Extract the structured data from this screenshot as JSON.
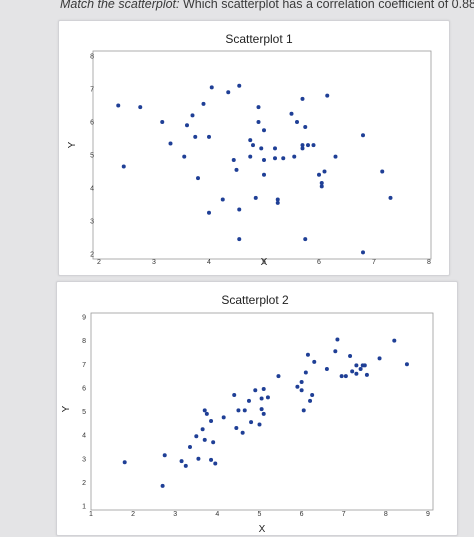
{
  "question": {
    "prefix": "Match the scatterplot:",
    "text": "Which scatterplot has a correlation coefficient of 0.88?"
  },
  "chart_data": [
    {
      "type": "scatter",
      "title": "Scatterplot 1",
      "xlabel": "X",
      "ylabel": "Y",
      "xlim": [
        2,
        8
      ],
      "ylim": [
        2,
        8
      ],
      "xticks": [
        2,
        3,
        4,
        5,
        6,
        7,
        8
      ],
      "yticks": [
        2,
        3,
        4,
        5,
        6,
        7,
        8
      ],
      "grid": false,
      "color": "#1f3f96",
      "points": [
        [
          2.35,
          6.5
        ],
        [
          2.75,
          6.45
        ],
        [
          2.45,
          4.65
        ],
        [
          3.15,
          6.0
        ],
        [
          3.3,
          5.35
        ],
        [
          3.55,
          4.95
        ],
        [
          3.6,
          5.9
        ],
        [
          3.7,
          6.2
        ],
        [
          3.75,
          5.55
        ],
        [
          3.8,
          4.3
        ],
        [
          3.9,
          6.55
        ],
        [
          4.0,
          5.55
        ],
        [
          4.05,
          7.05
        ],
        [
          4.0,
          3.25
        ],
        [
          4.25,
          3.65
        ],
        [
          4.35,
          6.9
        ],
        [
          4.45,
          4.85
        ],
        [
          4.5,
          4.55
        ],
        [
          4.55,
          3.35
        ],
        [
          4.55,
          2.45
        ],
        [
          4.55,
          7.1
        ],
        [
          4.75,
          5.45
        ],
        [
          4.75,
          4.95
        ],
        [
          4.8,
          5.3
        ],
        [
          4.85,
          3.7
        ],
        [
          4.9,
          6.45
        ],
        [
          4.9,
          6.0
        ],
        [
          4.95,
          5.2
        ],
        [
          5.0,
          4.85
        ],
        [
          5.0,
          4.4
        ],
        [
          5.0,
          5.75
        ],
        [
          5.2,
          5.2
        ],
        [
          5.2,
          4.9
        ],
        [
          5.25,
          3.65
        ],
        [
          5.25,
          3.55
        ],
        [
          5.35,
          4.9
        ],
        [
          5.5,
          6.25
        ],
        [
          5.55,
          4.95
        ],
        [
          5.6,
          6.0
        ],
        [
          5.7,
          5.3
        ],
        [
          5.7,
          5.2
        ],
        [
          5.75,
          5.85
        ],
        [
          5.7,
          6.7
        ],
        [
          5.75,
          2.45
        ],
        [
          5.8,
          5.3
        ],
        [
          5.9,
          5.3
        ],
        [
          6.0,
          4.4
        ],
        [
          6.05,
          4.15
        ],
        [
          6.05,
          4.05
        ],
        [
          6.1,
          4.5
        ],
        [
          6.15,
          6.8
        ],
        [
          6.3,
          4.95
        ],
        [
          6.8,
          5.6
        ],
        [
          6.8,
          2.05
        ],
        [
          7.15,
          4.5
        ],
        [
          7.3,
          3.7
        ]
      ]
    },
    {
      "type": "scatter",
      "title": "Scatterplot 2",
      "xlabel": "X",
      "ylabel": "Y",
      "xlim": [
        1,
        9
      ],
      "ylim": [
        1,
        9
      ],
      "xticks": [
        1,
        2,
        3,
        4,
        5,
        6,
        7,
        8,
        9
      ],
      "yticks": [
        1,
        2,
        3,
        4,
        5,
        6,
        7,
        8,
        9
      ],
      "grid": false,
      "color": "#1f3f96",
      "points": [
        [
          1.8,
          2.85
        ],
        [
          2.7,
          1.85
        ],
        [
          2.75,
          3.15
        ],
        [
          3.15,
          2.9
        ],
        [
          3.25,
          2.7
        ],
        [
          3.35,
          3.5
        ],
        [
          3.5,
          3.95
        ],
        [
          3.55,
          3.0
        ],
        [
          3.65,
          4.25
        ],
        [
          3.7,
          3.8
        ],
        [
          3.7,
          5.05
        ],
        [
          3.75,
          4.9
        ],
        [
          3.85,
          2.95
        ],
        [
          3.85,
          4.6
        ],
        [
          3.9,
          3.7
        ],
        [
          3.95,
          2.8
        ],
        [
          4.15,
          4.75
        ],
        [
          4.4,
          5.7
        ],
        [
          4.45,
          4.3
        ],
        [
          4.5,
          5.05
        ],
        [
          4.6,
          4.1
        ],
        [
          4.65,
          5.05
        ],
        [
          4.75,
          5.45
        ],
        [
          4.8,
          4.55
        ],
        [
          4.9,
          5.9
        ],
        [
          5.0,
          4.45
        ],
        [
          5.05,
          5.55
        ],
        [
          5.05,
          5.1
        ],
        [
          5.1,
          4.9
        ],
        [
          5.1,
          5.95
        ],
        [
          5.2,
          5.6
        ],
        [
          5.45,
          6.5
        ],
        [
          5.9,
          6.05
        ],
        [
          6.0,
          6.25
        ],
        [
          6.0,
          5.9
        ],
        [
          6.05,
          5.05
        ],
        [
          6.1,
          6.65
        ],
        [
          6.15,
          7.4
        ],
        [
          6.2,
          5.45
        ],
        [
          6.25,
          5.7
        ],
        [
          6.3,
          7.1
        ],
        [
          6.6,
          6.8
        ],
        [
          6.8,
          7.55
        ],
        [
          6.85,
          8.05
        ],
        [
          6.95,
          6.5
        ],
        [
          7.05,
          6.5
        ],
        [
          7.15,
          7.35
        ],
        [
          7.2,
          6.7
        ],
        [
          7.3,
          6.95
        ],
        [
          7.3,
          6.6
        ],
        [
          7.4,
          6.8
        ],
        [
          7.45,
          6.95
        ],
        [
          7.55,
          6.55
        ],
        [
          7.5,
          6.95
        ],
        [
          7.85,
          7.25
        ],
        [
          8.2,
          8.0
        ],
        [
          8.5,
          7.0
        ]
      ]
    }
  ]
}
